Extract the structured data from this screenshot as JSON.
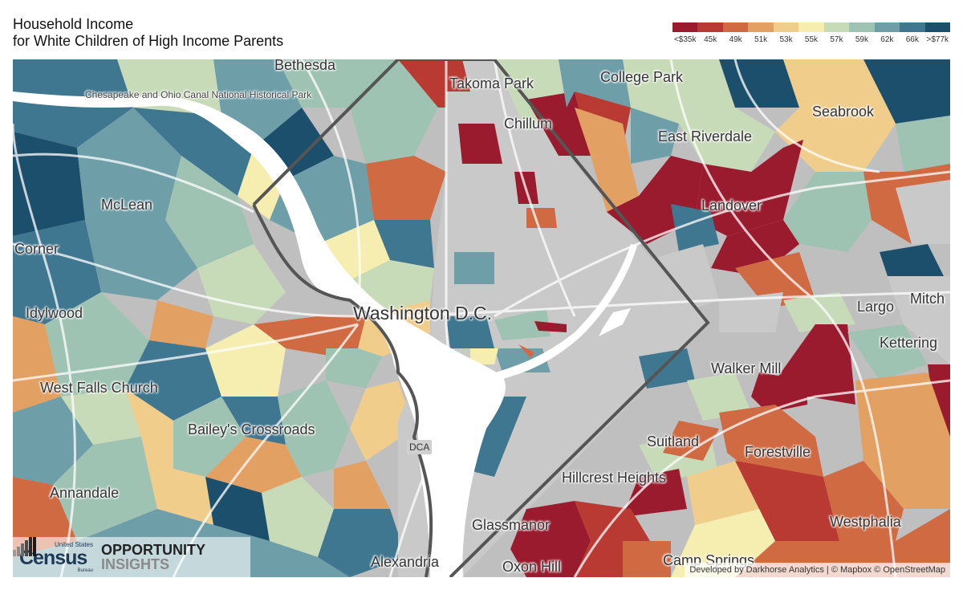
{
  "title": {
    "line1": "Household Income",
    "line2": "for White Children of High Income Parents"
  },
  "legend": {
    "colors": [
      "#9b1b2e",
      "#b83a32",
      "#cf6a42",
      "#e3a063",
      "#f1cd8c",
      "#f6eeb0",
      "#c8dbb9",
      "#9fc3b3",
      "#6e9fa9",
      "#3f7790",
      "#1b4f6c"
    ],
    "labels": [
      "<$35k",
      "45k",
      "49k",
      "51k",
      "53k",
      "55k",
      "57k",
      "59k",
      "62k",
      "66k",
      ">$77k"
    ]
  },
  "map": {
    "places": [
      {
        "name": "place-bethesda",
        "label": "Bethesda"
      },
      {
        "name": "place-takoma-park",
        "label": "Takoma Park"
      },
      {
        "name": "place-college-park",
        "label": "College Park"
      },
      {
        "name": "place-chesapeake-ohio-canal",
        "label": "Chesapeake and Ohio Canal National Historical Park"
      },
      {
        "name": "place-chillum",
        "label": "Chillum"
      },
      {
        "name": "place-east-riverdale",
        "label": "East Riverdale"
      },
      {
        "name": "place-seabrook",
        "label": "Seabrook"
      },
      {
        "name": "place-mclean",
        "label": "McLean"
      },
      {
        "name": "place-landover",
        "label": "Landover"
      },
      {
        "name": "place-corner",
        "label": "Corner"
      },
      {
        "name": "place-washington-dc",
        "label": "Washington D.C."
      },
      {
        "name": "place-idylwood",
        "label": "Idylwood"
      },
      {
        "name": "place-largo",
        "label": "Largo"
      },
      {
        "name": "place-mitch",
        "label": "Mitch"
      },
      {
        "name": "place-kettering",
        "label": "Kettering"
      },
      {
        "name": "place-walker-mill",
        "label": "Walker Mill"
      },
      {
        "name": "place-west-falls-church",
        "label": "West Falls Church"
      },
      {
        "name": "place-baileys-crossroads",
        "label": "Bailey's Crossroads"
      },
      {
        "name": "place-dca",
        "label": "DCA"
      },
      {
        "name": "place-suitland",
        "label": "Suitland"
      },
      {
        "name": "place-forestville",
        "label": "Forestville"
      },
      {
        "name": "place-hillcrest-heights",
        "label": "Hillcrest Heights"
      },
      {
        "name": "place-annandale",
        "label": "Annandale"
      },
      {
        "name": "place-westphalia",
        "label": "Westphalia"
      },
      {
        "name": "place-glassmanor",
        "label": "Glassmanor"
      },
      {
        "name": "place-alexandria",
        "label": "Alexandria"
      },
      {
        "name": "place-oxon-hill",
        "label": "Oxon Hill"
      },
      {
        "name": "place-camp-springs",
        "label": "Camp Springs"
      }
    ]
  },
  "logos": {
    "census_top": "United States",
    "census_main": "Census",
    "census_bottom": "Bureau",
    "oi_line1": "OPPORTUNITY",
    "oi_line2": "INSIGHTS"
  },
  "attribution": "Developed by Darkhorse Analytics | © Mapbox © OpenStreetMap"
}
